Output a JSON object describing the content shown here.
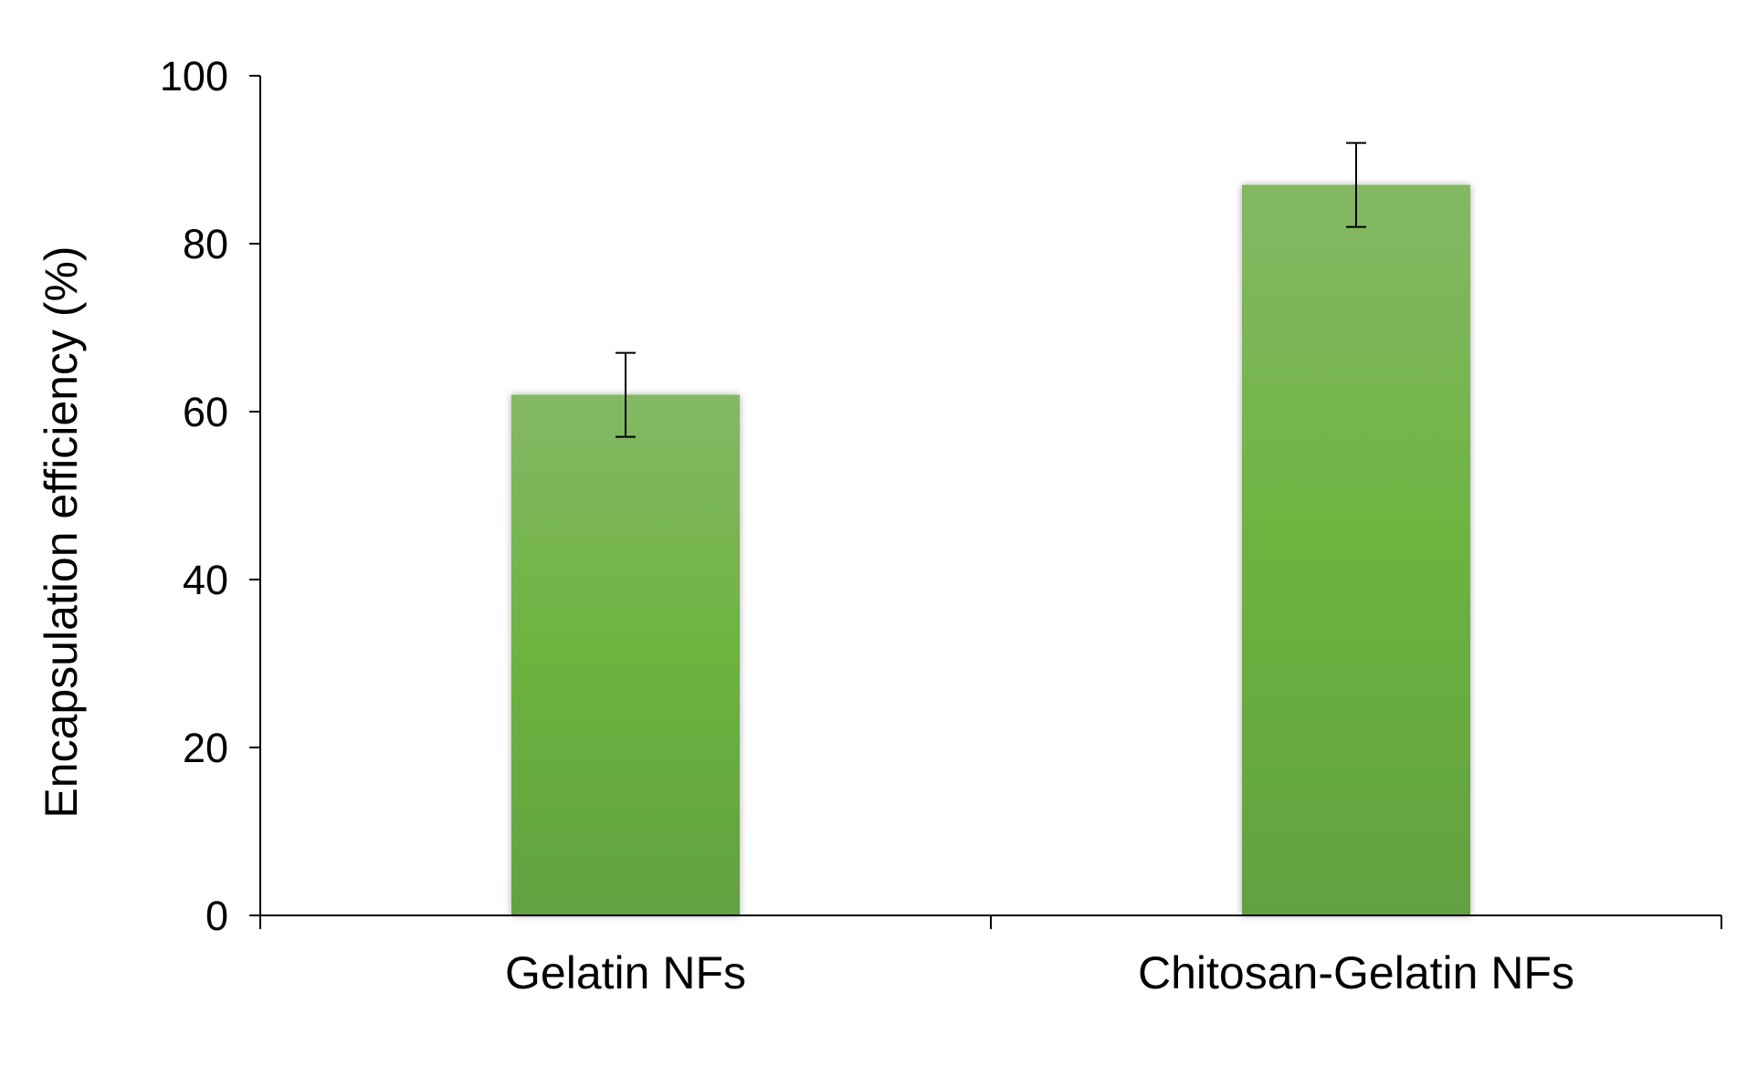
{
  "chart_data": {
    "type": "bar",
    "categories": [
      "Gelatin NFs",
      "Chitosan-Gelatin NFs"
    ],
    "values": [
      62,
      87
    ],
    "error": [
      5,
      5
    ],
    "xlabel": "",
    "ylabel": "Encapsulation efficiency (%)",
    "ylim": [
      0,
      100
    ],
    "yticks": [
      0,
      20,
      40,
      60,
      80,
      100
    ],
    "grid": false,
    "legend": "none",
    "colors": {
      "bar_top": "#84b865",
      "bar_mid": "#6db33f",
      "bar_bottom": "#62a140",
      "bar_edge": "#a7a0a8",
      "axis": "#000000"
    }
  }
}
